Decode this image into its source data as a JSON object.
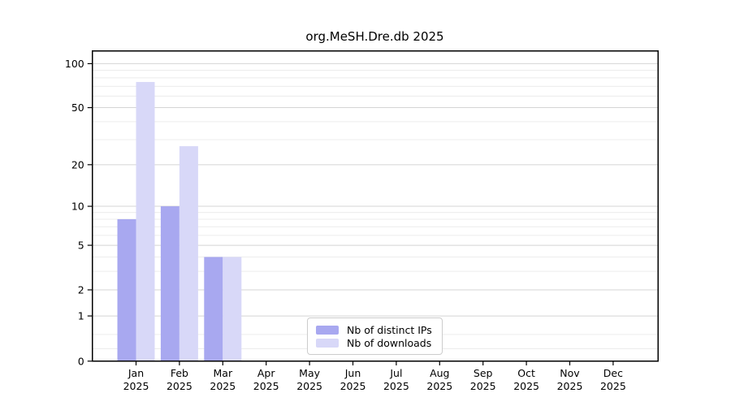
{
  "page": {
    "background": "#ffffff"
  },
  "chart_data": {
    "type": "bar",
    "title": "org.MeSH.Dre.db 2025",
    "categories": [
      "Jan",
      "Feb",
      "Mar",
      "Apr",
      "May",
      "Jun",
      "Jul",
      "Aug",
      "Sep",
      "Oct",
      "Nov",
      "Dec"
    ],
    "category_year": "2025",
    "series": [
      {
        "name": "Nb of distinct IPs",
        "color": "#a8a8f0",
        "values": [
          8,
          10,
          4,
          0,
          0,
          0,
          0,
          0,
          0,
          0,
          0,
          0
        ]
      },
      {
        "name": "Nb of downloads",
        "color": "#d8d8f8",
        "values": [
          75,
          27,
          4,
          0,
          0,
          0,
          0,
          0,
          0,
          0,
          0,
          0
        ]
      }
    ],
    "xlabel": "",
    "ylabel": "",
    "yaxis": {
      "scale": "log1p",
      "ticks": [
        0,
        1,
        2,
        5,
        10,
        20,
        50,
        100
      ],
      "minor_gridlines": [
        0.2,
        0.5,
        3,
        4,
        6,
        7,
        8,
        9,
        30,
        40,
        60,
        70,
        80,
        90
      ],
      "ylim": [
        0,
        124
      ]
    },
    "grid": true,
    "legend_position": "bottom-center"
  },
  "colors": {
    "major_grid": "#d4d4d4",
    "minor_grid": "#ececec",
    "spine": "#000000",
    "tick_text": "#000000",
    "legend_border": "#cccccc"
  }
}
